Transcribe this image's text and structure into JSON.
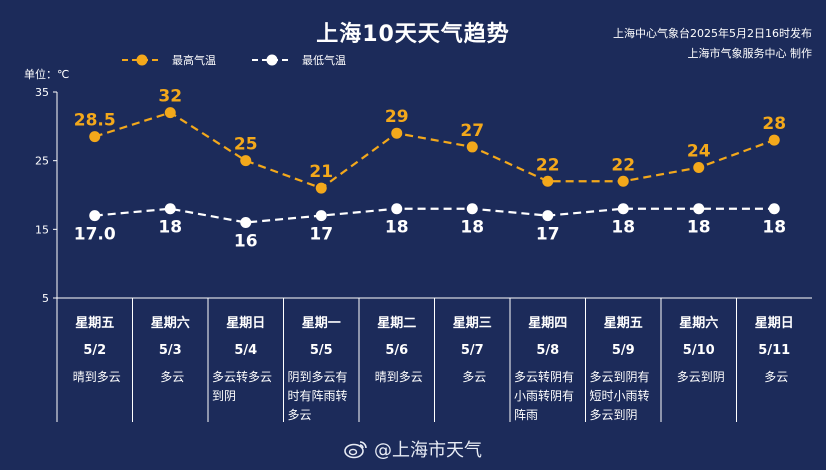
{
  "header": {
    "title": "上海10天天气趋势",
    "publisher_line1": "上海中心气象台2025年5月2日16时发布",
    "publisher_line2": "上海市气象服务中心 制作"
  },
  "legend": {
    "high_label": "最高气温",
    "low_label": "最低气温"
  },
  "unit_label": "单位：℃",
  "watermark": {
    "text": "@上海市天气",
    "icon": "weibo-icon"
  },
  "colors": {
    "background": "#1c2b5a",
    "high": "#f3a81b",
    "low": "#ffffff",
    "axis": "#ffffff"
  },
  "chart_data": {
    "type": "line",
    "x": [
      "5/2",
      "5/3",
      "5/4",
      "5/5",
      "5/6",
      "5/7",
      "5/8",
      "5/9",
      "5/10",
      "5/11"
    ],
    "weekdays": [
      "星期五",
      "星期六",
      "星期日",
      "星期一",
      "星期二",
      "星期三",
      "星期四",
      "星期五",
      "星期六",
      "星期日"
    ],
    "descriptions": [
      [
        "晴到多云"
      ],
      [
        "多云"
      ],
      [
        "多云转多云",
        "到阴"
      ],
      [
        "阴到多云有",
        "时有阵雨转",
        "多云"
      ],
      [
        "晴到多云"
      ],
      [
        "多云"
      ],
      [
        "多云转阴有",
        "小雨转阴有",
        "阵雨"
      ],
      [
        "多云到阴有",
        "短时小雨转",
        "多云到阴"
      ],
      [
        "多云到阴"
      ],
      [
        "多云"
      ]
    ],
    "series": [
      {
        "name": "最高气温",
        "values": [
          28.5,
          32,
          25,
          21,
          29,
          27,
          22,
          22,
          24,
          28
        ],
        "labels": [
          "28.5",
          "32",
          "25",
          "21",
          "29",
          "27",
          "22",
          "22",
          "24",
          "28"
        ]
      },
      {
        "name": "最低气温",
        "values": [
          17,
          18,
          16,
          17,
          18,
          18,
          17,
          18,
          18,
          18
        ],
        "labels": [
          "17.0",
          "18",
          "16",
          "17",
          "18",
          "18",
          "17",
          "18",
          "18",
          "18"
        ]
      }
    ],
    "yticks": [
      5,
      15,
      25,
      35
    ],
    "ylim": [
      5,
      35
    ],
    "grid": false,
    "legend_position": "top-left"
  }
}
